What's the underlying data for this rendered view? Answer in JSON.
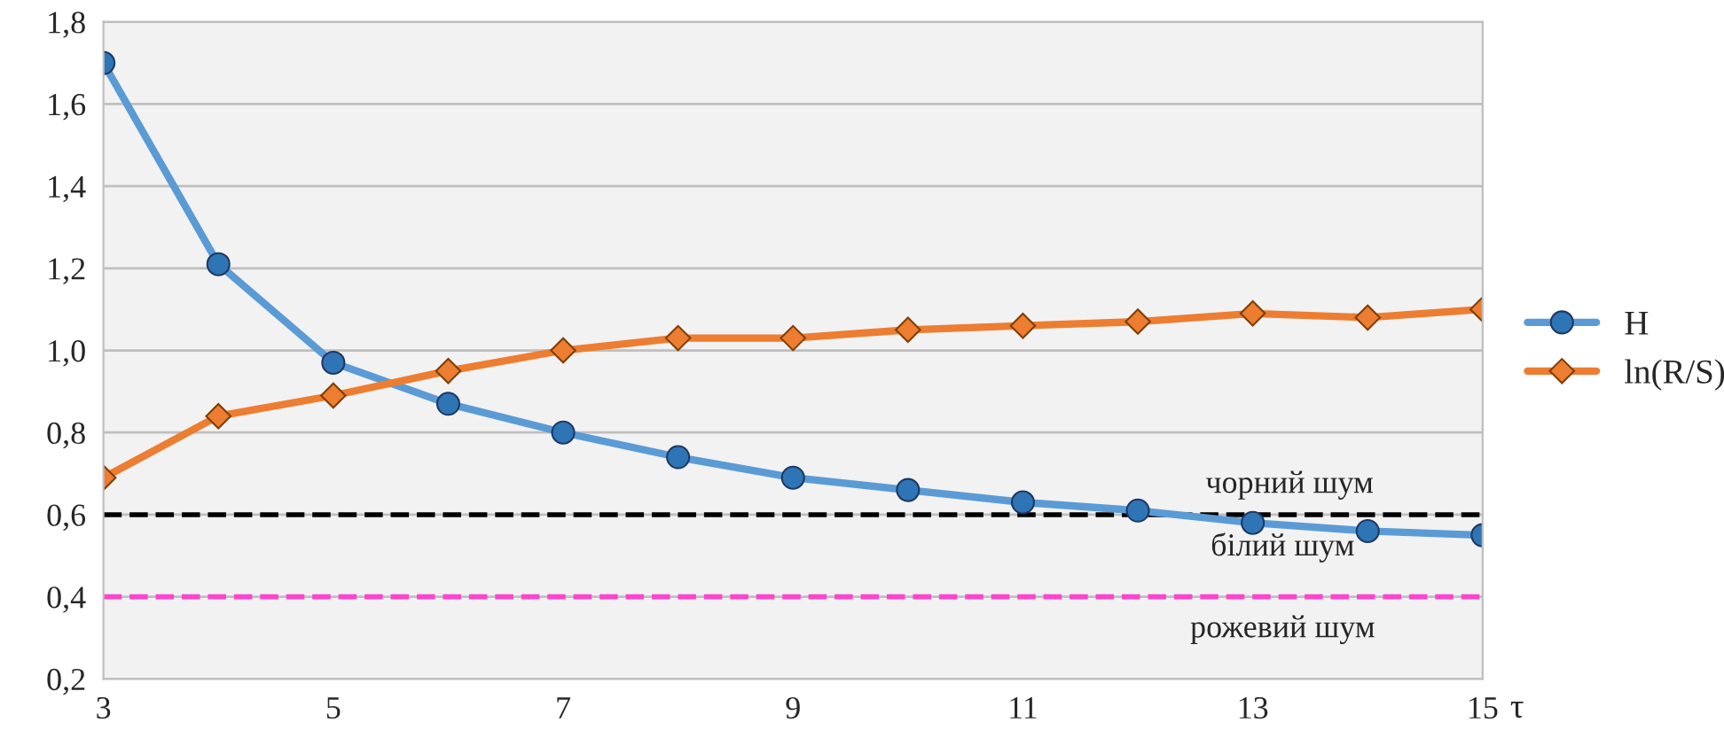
{
  "chart_data": {
    "type": "line",
    "x": [
      3,
      4,
      5,
      6,
      7,
      8,
      9,
      10,
      11,
      12,
      13,
      14,
      15
    ],
    "series": [
      {
        "name": "H",
        "color": "#5b9bd5",
        "marker": "circle",
        "values": [
          1.7,
          1.21,
          0.97,
          0.87,
          0.8,
          0.74,
          0.69,
          0.66,
          0.63,
          0.61,
          0.58,
          0.56,
          0.55
        ]
      },
      {
        "name": "ln(R/S)",
        "color": "#ed7d31",
        "marker": "diamond",
        "values": [
          0.69,
          0.84,
          0.89,
          0.95,
          1.0,
          1.03,
          1.03,
          1.05,
          1.06,
          1.07,
          1.09,
          1.08,
          1.1
        ]
      }
    ],
    "xlabel": "τ",
    "xlim": [
      3,
      15
    ],
    "xticks": [
      3,
      5,
      7,
      9,
      11,
      13,
      15
    ],
    "ylim": [
      0.2,
      1.8
    ],
    "yticks": [
      {
        "value": 0.2,
        "label": "0,2"
      },
      {
        "value": 0.4,
        "label": "0,4"
      },
      {
        "value": 0.6,
        "label": "0,6"
      },
      {
        "value": 0.8,
        "label": "0,8"
      },
      {
        "value": 1.0,
        "label": "1,0"
      },
      {
        "value": 1.2,
        "label": "1,2"
      },
      {
        "value": 1.4,
        "label": "1,4"
      },
      {
        "value": 1.6,
        "label": "1,6"
      },
      {
        "value": 1.8,
        "label": "1,8"
      }
    ],
    "ref_lines": [
      {
        "axis": "y",
        "value": 0.6,
        "color": "#000000",
        "line_style": "dashed"
      },
      {
        "axis": "y",
        "value": 0.4,
        "color": "#ff44cc",
        "line_style": "dashed"
      }
    ],
    "annotations": [
      "чорний шум",
      "білий шум",
      "рожевий шум"
    ],
    "grid": "y",
    "legend": "right"
  }
}
